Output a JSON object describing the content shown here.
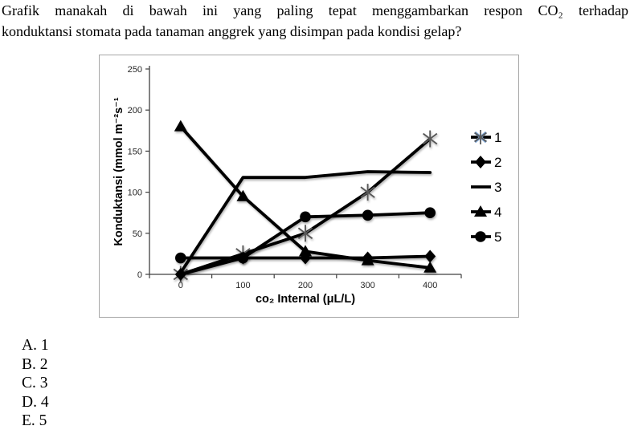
{
  "question": {
    "line1": "Grafik manakah di bawah ini yang paling tepat menggambarkan respon CO₂ terhadap",
    "line2": "konduktansi stomata pada tanaman anggrek yang disimpan pada kondisi gelap?"
  },
  "options": [
    "A. 1",
    "B. 2",
    "C. 3",
    "D. 4",
    "E. 5"
  ],
  "chart_data": {
    "type": "line",
    "categories": [
      0,
      100,
      200,
      300,
      400
    ],
    "series": [
      {
        "name": "1",
        "marker": "asterisk",
        "marker_color": "#595959",
        "values": [
          0,
          25,
          50,
          100,
          165
        ]
      },
      {
        "name": "2",
        "marker": "diamond",
        "marker_color": "#000000",
        "values": [
          0,
          20,
          20,
          20,
          22
        ]
      },
      {
        "name": "3",
        "marker": "none",
        "marker_color": "#000000",
        "values": [
          2,
          118,
          118,
          125,
          124
        ]
      },
      {
        "name": "4",
        "marker": "triangle",
        "marker_color": "#000000",
        "values": [
          180,
          95,
          28,
          17,
          8
        ]
      },
      {
        "name": "5",
        "marker": "circle",
        "marker_color": "#000000",
        "values": [
          20,
          20,
          70,
          72,
          75
        ]
      }
    ],
    "xlabel": "co₂ Internal (μL/L)",
    "ylabel": "Konduktansi (mmol m⁻²s⁻¹",
    "ylim": [
      0,
      250
    ],
    "yticks": [
      0,
      50,
      100,
      150,
      200,
      250
    ],
    "xticks": [
      0,
      100,
      200,
      300,
      400
    ],
    "grid": false,
    "legend_position": "right",
    "legend_labels": [
      "1",
      "2",
      "3",
      "4",
      "5"
    ],
    "line_color": "#000000",
    "axis_color": "#404040",
    "tick_label_color": "#262626",
    "legend1_highlight_color": "#7da7d9",
    "frame_border_color": "#a6a6a6"
  }
}
